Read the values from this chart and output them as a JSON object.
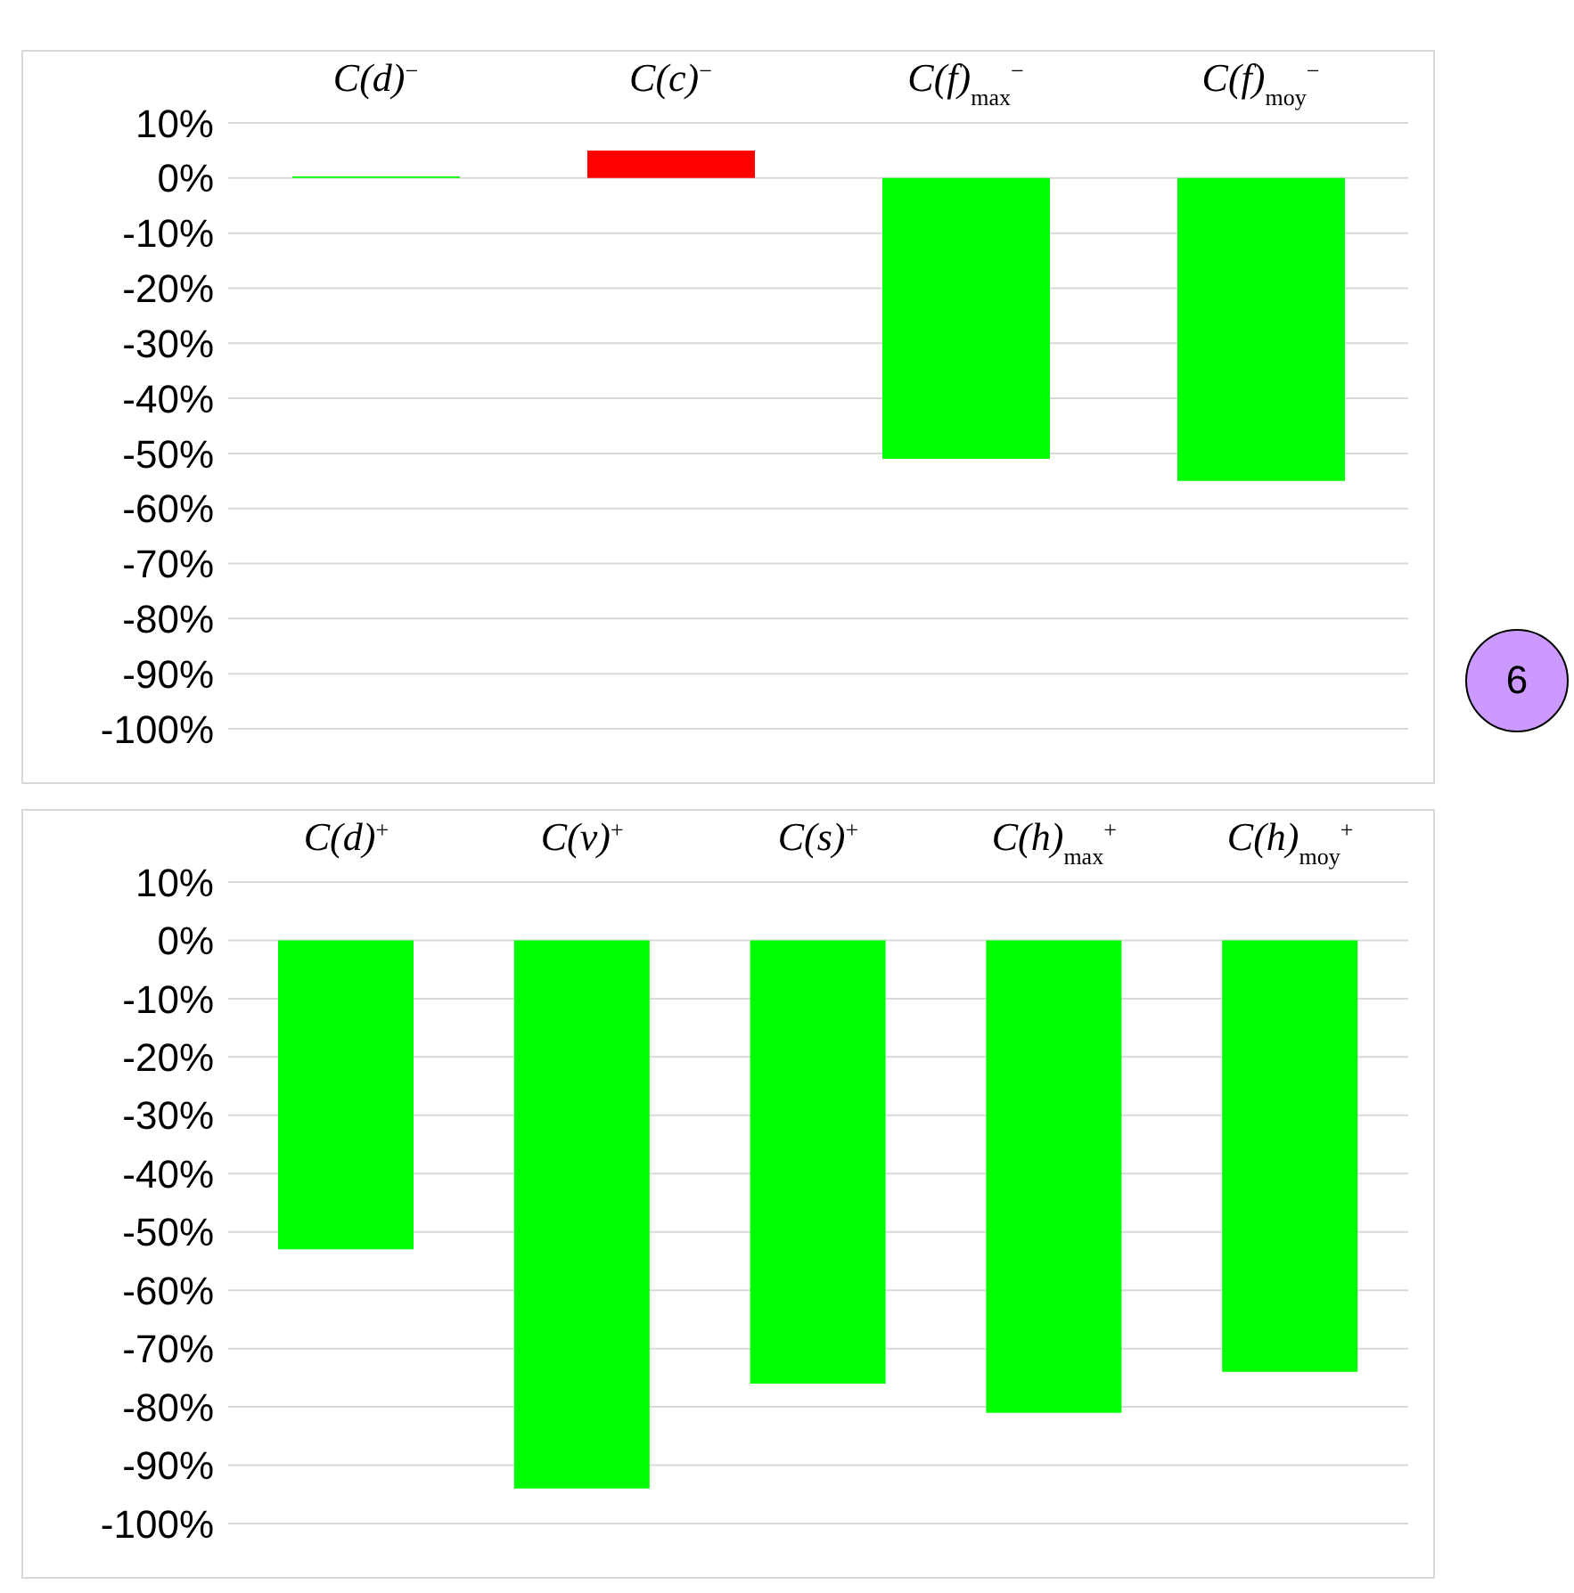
{
  "chart_data": [
    {
      "type": "bar",
      "categories": [
        "C(d)$^{−}$",
        "C(c)$^{−}$",
        "C(f)$_{max}$$^{−}$",
        "C(f)$_{moy}$$^{−}$"
      ],
      "values": [
        0.3,
        5,
        -51,
        -55
      ],
      "colors": [
        "#00ff00",
        "#ff0000",
        "#00ff00",
        "#00ff00"
      ],
      "ylim": [
        -100,
        10
      ],
      "yticks": [
        {
          "value": 10,
          "label": "10%"
        },
        {
          "value": 0,
          "label": "0%"
        },
        {
          "value": -10,
          "label": "-10%"
        },
        {
          "value": -20,
          "label": "-20%"
        },
        {
          "value": -30,
          "label": "-30%"
        },
        {
          "value": -40,
          "label": "-40%"
        },
        {
          "value": -50,
          "label": "-50%"
        },
        {
          "value": -60,
          "label": "-60%"
        },
        {
          "value": -70,
          "label": "-70%"
        },
        {
          "value": -80,
          "label": "-80%"
        },
        {
          "value": -90,
          "label": "-90%"
        },
        {
          "value": -100,
          "label": "-100%"
        }
      ],
      "grid": "y",
      "annotations": [
        "6"
      ]
    },
    {
      "type": "bar",
      "categories": [
        "C(d)$^{+}$",
        "C(v)$^{+}$",
        "C(s)$^{+}$",
        "C(h)$_{max}$$^{+}$",
        "C(h)$_{moy}$$^{+}$"
      ],
      "values": [
        -53,
        -94,
        -76,
        -81,
        -74
      ],
      "colors": [
        "#00ff00",
        "#00ff00",
        "#00ff00",
        "#00ff00",
        "#00ff00"
      ],
      "ylim": [
        -100,
        10
      ],
      "yticks": [
        {
          "value": 10,
          "label": "10%"
        },
        {
          "value": 0,
          "label": "0%"
        },
        {
          "value": -10,
          "label": "-10%"
        },
        {
          "value": -20,
          "label": "-20%"
        },
        {
          "value": -30,
          "label": "-30%"
        },
        {
          "value": -40,
          "label": "-40%"
        },
        {
          "value": -50,
          "label": "-50%"
        },
        {
          "value": -60,
          "label": "-60%"
        },
        {
          "value": -70,
          "label": "-70%"
        },
        {
          "value": -80,
          "label": "-80%"
        },
        {
          "value": -90,
          "label": "-90%"
        },
        {
          "value": -100,
          "label": "-100%"
        }
      ],
      "grid": "y"
    }
  ]
}
